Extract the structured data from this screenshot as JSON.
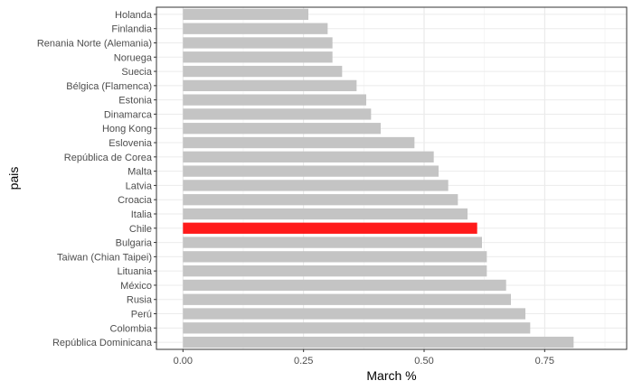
{
  "chart_data": {
    "type": "bar",
    "orientation": "horizontal",
    "xlabel": "March %",
    "ylabel": "pais",
    "xlim": [
      -0.055,
      0.92
    ],
    "xticks": [
      0.0,
      0.25,
      0.5,
      0.75
    ],
    "xtick_labels": [
      "0.00",
      "0.25",
      "0.50",
      "0.75"
    ],
    "grid": true,
    "legend": "none",
    "bar_color": "#c4c4c4",
    "highlight_color": "#ff1a1a",
    "highlight": "Chile",
    "categories": [
      "Holanda",
      "Finlandia",
      "Renania Norte (Alemania)",
      "Noruega",
      "Suecia",
      "Bélgica (Flamenca)",
      "Estonia",
      "Dinamarca",
      "Hong Kong",
      "Eslovenia",
      "República de Corea",
      "Malta",
      "Latvia",
      "Croacia",
      "Italia",
      "Chile",
      "Bulgaria",
      "Taiwan (Chian Taipei)",
      "Lituania",
      "México",
      "Rusia",
      "Perú",
      "Colombia",
      "República Dominicana"
    ],
    "values": [
      0.26,
      0.3,
      0.31,
      0.31,
      0.33,
      0.36,
      0.38,
      0.39,
      0.41,
      0.48,
      0.52,
      0.53,
      0.55,
      0.57,
      0.59,
      0.61,
      0.62,
      0.63,
      0.63,
      0.67,
      0.68,
      0.71,
      0.72,
      0.81
    ]
  }
}
